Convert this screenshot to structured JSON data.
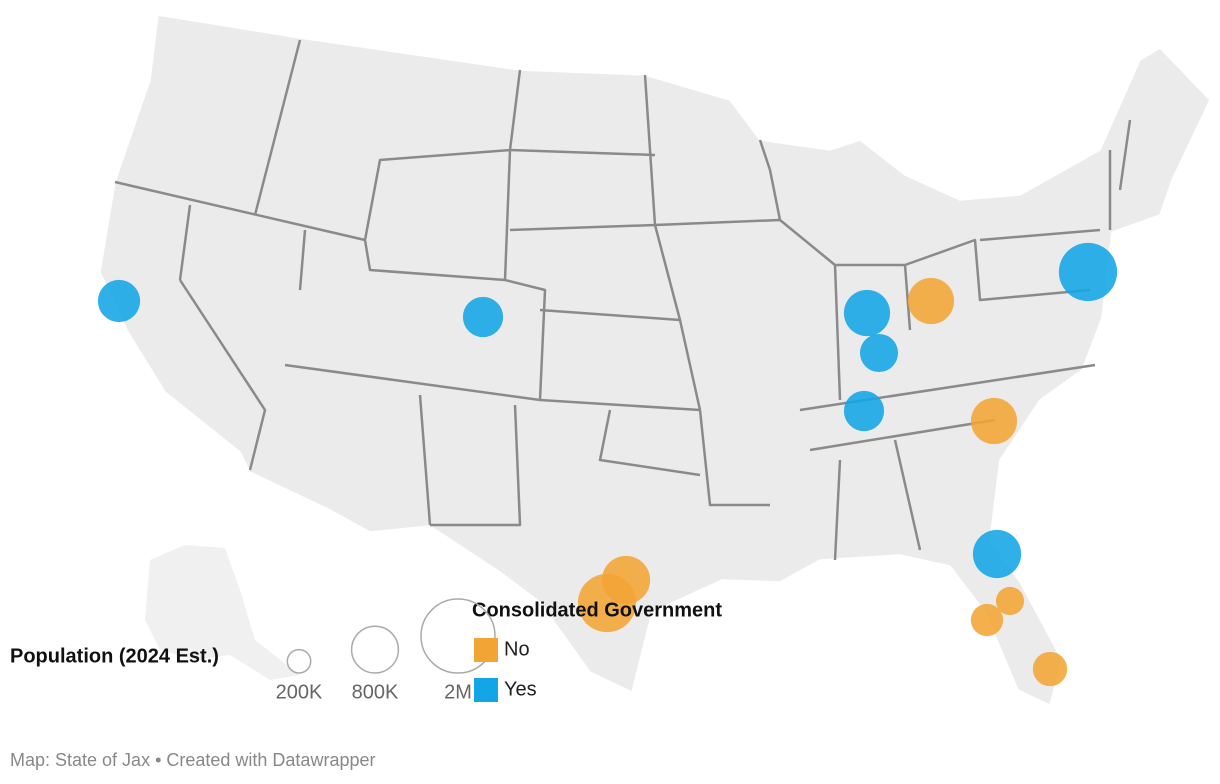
{
  "chart_data": {
    "type": "bubble_map",
    "series": [
      {
        "name": "No",
        "color": "#f2a534",
        "values": [
          780000,
          780000,
          1240000,
          850000,
          290000,
          380000,
          430000
        ]
      },
      {
        "name": "Yes",
        "color": "#13a5e6",
        "values": [
          650000,
          590000,
          780000,
          530000,
          590000,
          850000,
          1240000
        ]
      }
    ],
    "legend_title": "Consolidated Government",
    "size_legend": {
      "title": "Population (2024 Est.)",
      "ticks": [
        {
          "value": 200000,
          "label": "200K"
        },
        {
          "value": 800000,
          "label": "800K"
        },
        {
          "value": 2000000,
          "label": "2M"
        }
      ]
    },
    "footer": "Map: State of Jax • Created with Datawrapper"
  }
}
